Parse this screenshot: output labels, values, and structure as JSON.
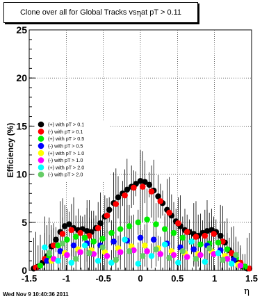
{
  "title": {
    "prefix": "Clone  over all for Global Tracks vs ",
    "eta": "η",
    "suffix": " at pT > 0.11"
  },
  "timestamp": "Wed Nov  9 10:40:36 2011",
  "chart_data": {
    "type": "scatter",
    "ylabel": "Efficiency (%)",
    "xlabel": "η",
    "xlim": [
      -1.5,
      1.5
    ],
    "ylim": [
      0,
      25
    ],
    "xticks": [
      "-1.5",
      "-1",
      "-0.5",
      "0",
      "0.5",
      "1",
      "1.5"
    ],
    "yticks": [
      "0",
      "5",
      "10",
      "15",
      "20",
      "25"
    ],
    "grid": true,
    "legend_placement": "center-left",
    "series": [
      {
        "name": "(+) with pT > 0.1",
        "color": "#000000",
        "points": [
          [
            -1.44,
            0.2
          ],
          [
            -1.38,
            0.4
          ],
          [
            -1.32,
            0.8
          ],
          [
            -1.26,
            1.5
          ],
          [
            -1.2,
            2.5
          ],
          [
            -1.14,
            3.2
          ],
          [
            -1.08,
            4.0
          ],
          [
            -1.02,
            4.6
          ],
          [
            -0.96,
            4.8
          ],
          [
            -0.9,
            4.4
          ],
          [
            -0.84,
            4.2
          ],
          [
            -0.78,
            4.3
          ],
          [
            -0.72,
            4.1
          ],
          [
            -0.66,
            4.0
          ],
          [
            -0.6,
            4.4
          ],
          [
            -0.54,
            4.9
          ],
          [
            -0.48,
            5.6
          ],
          [
            -0.42,
            6.3
          ],
          [
            -0.36,
            7.0
          ],
          [
            -0.3,
            7.6
          ],
          [
            -0.24,
            8.0
          ],
          [
            -0.18,
            8.4
          ],
          [
            -0.12,
            8.7
          ],
          [
            -0.06,
            9.0
          ],
          [
            0.0,
            9.3
          ],
          [
            0.06,
            9.2
          ],
          [
            0.12,
            8.9
          ],
          [
            0.18,
            8.3
          ],
          [
            0.24,
            7.7
          ],
          [
            0.3,
            7.0
          ],
          [
            0.36,
            6.3
          ],
          [
            0.42,
            5.7
          ],
          [
            0.48,
            5.1
          ],
          [
            0.54,
            4.6
          ],
          [
            0.6,
            4.2
          ],
          [
            0.66,
            4.0
          ],
          [
            0.72,
            3.8
          ],
          [
            0.78,
            3.6
          ],
          [
            0.84,
            3.9
          ],
          [
            0.9,
            4.1
          ],
          [
            0.96,
            4.2
          ],
          [
            1.02,
            4.0
          ],
          [
            1.08,
            3.6
          ],
          [
            1.14,
            2.9
          ],
          [
            1.2,
            2.1
          ],
          [
            1.26,
            1.4
          ],
          [
            1.32,
            0.8
          ],
          [
            1.38,
            0.4
          ],
          [
            1.44,
            0.2
          ]
        ]
      },
      {
        "name": "(-) with pT > 0.1",
        "color": "#ff0000",
        "points": [
          [
            -1.41,
            0.3
          ],
          [
            -1.29,
            1.2
          ],
          [
            -1.17,
            2.6
          ],
          [
            -1.05,
            3.8
          ],
          [
            -0.93,
            4.2
          ],
          [
            -0.81,
            3.9
          ],
          [
            -0.69,
            3.6
          ],
          [
            -0.57,
            4.4
          ],
          [
            -0.45,
            5.7
          ],
          [
            -0.33,
            6.9
          ],
          [
            -0.21,
            7.8
          ],
          [
            -0.09,
            8.6
          ],
          [
            0.03,
            8.7
          ],
          [
            0.15,
            8.2
          ],
          [
            0.27,
            7.2
          ],
          [
            0.39,
            6.0
          ],
          [
            0.51,
            4.9
          ],
          [
            0.63,
            4.0
          ],
          [
            0.75,
            3.5
          ],
          [
            0.87,
            3.6
          ],
          [
            0.99,
            3.8
          ],
          [
            1.11,
            3.0
          ],
          [
            1.23,
            1.8
          ],
          [
            1.35,
            0.8
          ],
          [
            1.47,
            0.2
          ]
        ]
      },
      {
        "name": "(+) with pT > 0.5",
        "color": "#00ee00",
        "points": [
          [
            -1.35,
            0.5
          ],
          [
            -1.23,
            1.5
          ],
          [
            -1.11,
            2.6
          ],
          [
            -0.99,
            3.2
          ],
          [
            -0.87,
            3.5
          ],
          [
            -0.75,
            3.4
          ],
          [
            -0.63,
            3.0
          ],
          [
            -0.51,
            3.3
          ],
          [
            -0.39,
            3.9
          ],
          [
            -0.27,
            4.3
          ],
          [
            -0.15,
            4.6
          ],
          [
            -0.03,
            5.0
          ],
          [
            0.09,
            5.3
          ],
          [
            0.21,
            4.8
          ],
          [
            0.33,
            4.3
          ],
          [
            0.45,
            3.9
          ],
          [
            0.57,
            3.4
          ],
          [
            0.69,
            3.0
          ],
          [
            0.81,
            2.7
          ],
          [
            0.93,
            2.8
          ],
          [
            1.05,
            2.9
          ],
          [
            1.17,
            2.2
          ],
          [
            1.29,
            1.3
          ],
          [
            1.41,
            0.4
          ]
        ]
      },
      {
        "name": "(-) with pT > 0.5",
        "color": "#0000ff",
        "points": [
          [
            -1.26,
            1.0
          ],
          [
            -1.08,
            2.0
          ],
          [
            -0.9,
            2.6
          ],
          [
            -0.72,
            2.8
          ],
          [
            -0.54,
            2.6
          ],
          [
            -0.36,
            3.0
          ],
          [
            -0.18,
            3.1
          ],
          [
            0.0,
            3.4
          ],
          [
            0.18,
            3.2
          ],
          [
            0.36,
            2.8
          ],
          [
            0.54,
            2.4
          ],
          [
            0.72,
            2.2
          ],
          [
            0.9,
            2.6
          ],
          [
            1.08,
            2.1
          ],
          [
            1.26,
            1.1
          ]
        ]
      },
      {
        "name": "(+) with pT > 1.0",
        "color": "#ffff00",
        "points": [
          [
            -1.2,
            1.0
          ],
          [
            -1.02,
            1.8
          ],
          [
            -0.84,
            2.2
          ],
          [
            -0.66,
            2.1
          ],
          [
            -0.48,
            1.9
          ],
          [
            -0.3,
            2.3
          ],
          [
            -0.12,
            2.5
          ],
          [
            0.06,
            2.6
          ],
          [
            0.24,
            2.3
          ],
          [
            0.42,
            2.0
          ],
          [
            0.6,
            1.8
          ],
          [
            0.78,
            1.7
          ],
          [
            0.96,
            2.0
          ],
          [
            1.14,
            1.5
          ],
          [
            1.32,
            0.6
          ]
        ]
      },
      {
        "name": "(-) with pT > 1.0",
        "color": "#ff00ff",
        "points": [
          [
            -1.17,
            1.2
          ],
          [
            -0.99,
            1.6
          ],
          [
            -0.81,
            1.9
          ],
          [
            -0.63,
            1.7
          ],
          [
            -0.45,
            1.5
          ],
          [
            -0.27,
            1.9
          ],
          [
            -0.09,
            2.1
          ],
          [
            0.09,
            2.0
          ],
          [
            0.27,
            1.7
          ],
          [
            0.45,
            1.6
          ],
          [
            0.63,
            1.4
          ],
          [
            0.81,
            1.6
          ],
          [
            0.99,
            1.7
          ],
          [
            1.17,
            1.2
          ],
          [
            1.35,
            0.5
          ]
        ]
      },
      {
        "name": "(+) with pT > 2.0",
        "color": "#00ffff",
        "points": [
          [
            -1.29,
            2.4
          ],
          [
            -1.11,
            1.0
          ],
          [
            -0.93,
            0.8
          ],
          [
            -0.75,
            2.6
          ],
          [
            -0.57,
            1.0
          ],
          [
            -0.39,
            0.8
          ],
          [
            -0.21,
            3.2
          ],
          [
            -0.03,
            0.7
          ],
          [
            0.15,
            1.5
          ],
          [
            0.33,
            2.7
          ],
          [
            0.51,
            0.8
          ],
          [
            0.69,
            3.0
          ],
          [
            0.87,
            0.9
          ],
          [
            1.05,
            1.8
          ],
          [
            1.23,
            0.7
          ]
        ]
      },
      {
        "name": "(-) with pT > 2.0",
        "color": "#66cc66",
        "points": [
          [
            -1.23,
            1.8
          ],
          [
            -1.05,
            2.8
          ],
          [
            -0.87,
            1.2
          ],
          [
            -0.69,
            1.8
          ],
          [
            -0.51,
            2.4
          ],
          [
            -0.33,
            1.1
          ],
          [
            -0.15,
            2.0
          ],
          [
            0.03,
            1.5
          ],
          [
            0.21,
            2.2
          ],
          [
            0.39,
            1.3
          ],
          [
            0.57,
            2.0
          ],
          [
            0.75,
            1.2
          ],
          [
            0.93,
            2.3
          ],
          [
            1.11,
            1.1
          ],
          [
            1.29,
            1.6
          ]
        ]
      }
    ]
  }
}
